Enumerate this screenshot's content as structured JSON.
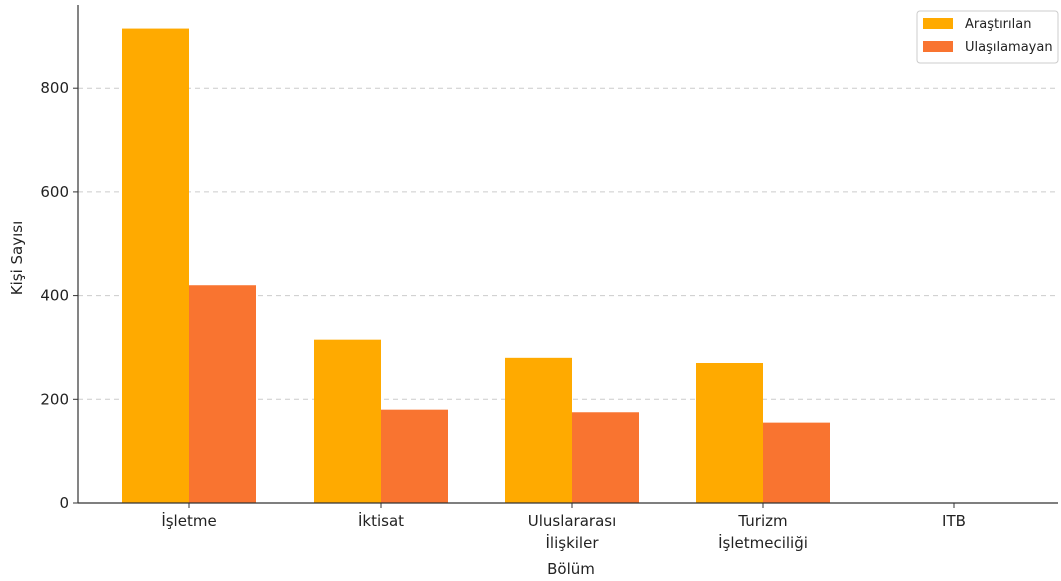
{
  "chart_data": {
    "type": "bar",
    "categories": [
      "İşletme",
      "İktisat",
      "Uluslararası\nİlişkiler",
      "Turizm\nİşletmeciliği",
      "ITB"
    ],
    "series": [
      {
        "name": "Araştırılan",
        "color": "#FFAA00",
        "values": [
          915,
          315,
          280,
          270,
          0
        ]
      },
      {
        "name": "Ulaşılamayan",
        "color": "#F97430",
        "values": [
          420,
          180,
          175,
          155,
          0
        ]
      }
    ],
    "xlabel": "Bölüm",
    "ylabel": "Kişi Sayısı",
    "ylim": [
      0,
      960
    ],
    "yticks": [
      0,
      200,
      400,
      600,
      800
    ],
    "grid": "y-dashed",
    "legend": "top-right"
  }
}
